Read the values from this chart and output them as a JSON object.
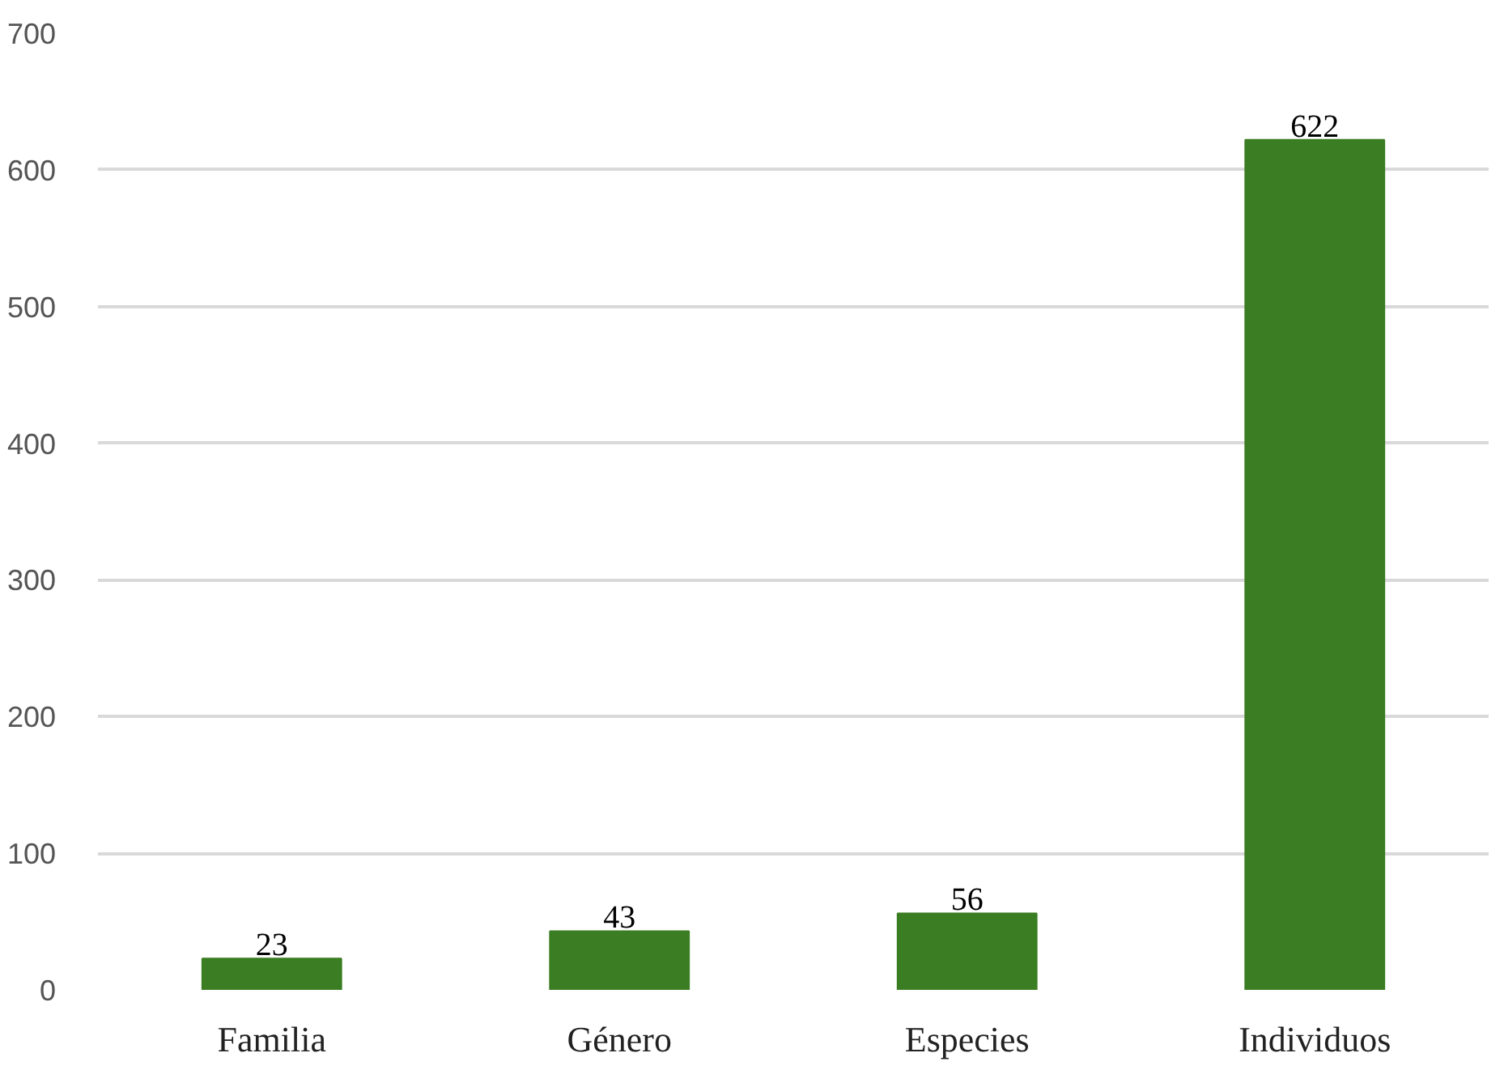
{
  "chart_data": {
    "type": "bar",
    "categories": [
      "Familia",
      "Género",
      "Especies",
      "Individuos"
    ],
    "values": [
      23,
      43,
      56,
      622
    ],
    "color": "#3a7d22",
    "ylim": [
      0,
      700
    ],
    "yticks": [
      0,
      100,
      200,
      300,
      400,
      500,
      600,
      700
    ],
    "grid": "y",
    "data_labels": true
  }
}
